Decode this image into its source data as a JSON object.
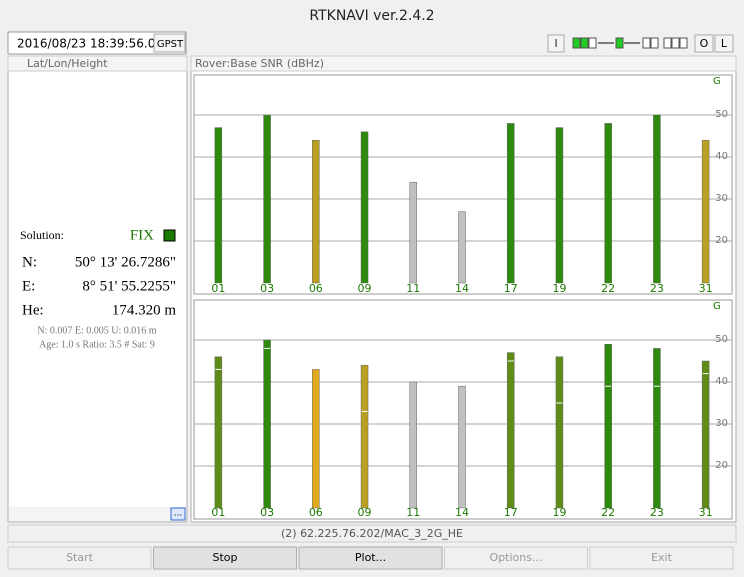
{
  "window": {
    "title": "RTKNAVI ver.2.4.2"
  },
  "toolbar": {
    "time": "2016/08/23 18:39:56.0",
    "time_system": "GPST",
    "buttons": [
      "I",
      "O",
      "L"
    ]
  },
  "solution_panel": {
    "header": "Lat/Lon/Height",
    "solution_label": "Solution:",
    "status": "FIX",
    "rows": [
      {
        "label": "N:",
        "value": "50° 13' 26.7286\""
      },
      {
        "label": "E:",
        "value": "8° 51' 55.2255\""
      },
      {
        "label": "He:",
        "value": "174.320 m"
      }
    ],
    "stats": [
      "N: 0.007 E: 0.005 U: 0.016 m",
      "Age: 1.0 s Ratio: 3.5 # Sat: 9"
    ],
    "more_button": "..."
  },
  "snr": {
    "header": "Rover:Base SNR (dBHz)",
    "ylim": [
      10,
      60
    ],
    "yticks": [
      20,
      30,
      40,
      50
    ],
    "satellites": [
      "01",
      "03",
      "06",
      "09",
      "11",
      "14",
      "17",
      "19",
      "22",
      "23",
      "31"
    ],
    "panels": [
      {
        "system": "G",
        "values": [
          47,
          50,
          44,
          46,
          34,
          27,
          48,
          47,
          48,
          50,
          44
        ],
        "colors": [
          "#2d8a0c",
          "#2d8a0c",
          "#b8a022",
          "#2d8a0c",
          "#c0c0c0",
          "#c0c0c0",
          "#2d8a0c",
          "#2d8a0c",
          "#2d8a0c",
          "#2d8a0c",
          "#b8a022"
        ],
        "markers": [
          null,
          null,
          null,
          null,
          null,
          null,
          null,
          null,
          null,
          null,
          null
        ]
      },
      {
        "system": "G",
        "values": [
          46,
          50,
          43,
          44,
          40,
          39,
          47,
          46,
          49,
          48,
          45
        ],
        "colors": [
          "#5f8c16",
          "#2d8a0c",
          "#e0a81e",
          "#b8a022",
          "#c0c0c0",
          "#c0c0c0",
          "#5f8c16",
          "#5f8c16",
          "#2d8a0c",
          "#2d8a0c",
          "#5f8c16"
        ],
        "markers": [
          43,
          48,
          null,
          33,
          null,
          null,
          45,
          35,
          39,
          39,
          42
        ]
      }
    ]
  },
  "status_bar": {
    "stream": "(2) 62.225.76.202/MAC_3_2G_HE"
  },
  "buttons": [
    "Start",
    "Stop",
    "Plot...",
    "Options...",
    "Exit"
  ]
}
